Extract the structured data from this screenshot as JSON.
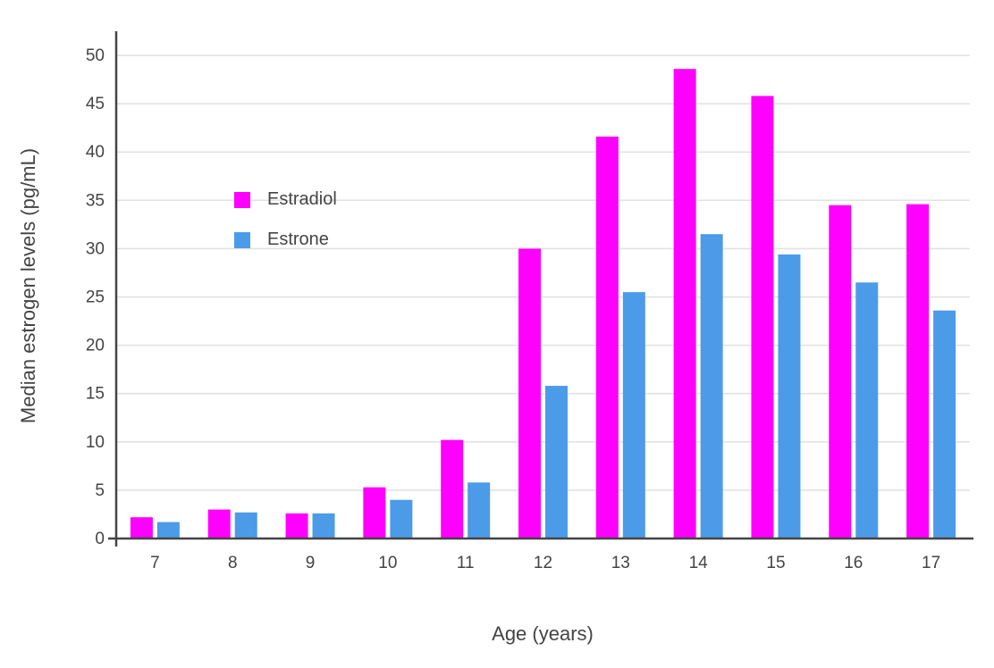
{
  "chart_data": {
    "type": "bar",
    "title": "",
    "xlabel": "Age (years)",
    "ylabel": "Median estrogen levels (pg/mL)",
    "categories": [
      "7",
      "8",
      "9",
      "10",
      "11",
      "12",
      "13",
      "14",
      "15",
      "16",
      "17"
    ],
    "series": [
      {
        "name": "Estradiol",
        "color": "#FF00FF",
        "values": [
          2.2,
          3.0,
          2.6,
          5.3,
          10.2,
          30.0,
          41.6,
          48.6,
          45.8,
          34.5,
          34.6
        ]
      },
      {
        "name": "Estrone",
        "color": "#4C9BE8",
        "values": [
          1.7,
          2.7,
          2.6,
          4.0,
          5.8,
          15.8,
          25.5,
          31.5,
          29.4,
          26.5,
          23.6
        ]
      }
    ],
    "ylim": [
      0,
      52.5
    ],
    "yticks": [
      0,
      5,
      10,
      15,
      20,
      25,
      30,
      35,
      40,
      45,
      50
    ],
    "grid": true,
    "legend_position": "inside-top-left",
    "colors": {
      "background": "#FFFFFF",
      "grid": "#E2E2E2",
      "axis_line": "#444444",
      "tick_text": "#444444"
    }
  }
}
